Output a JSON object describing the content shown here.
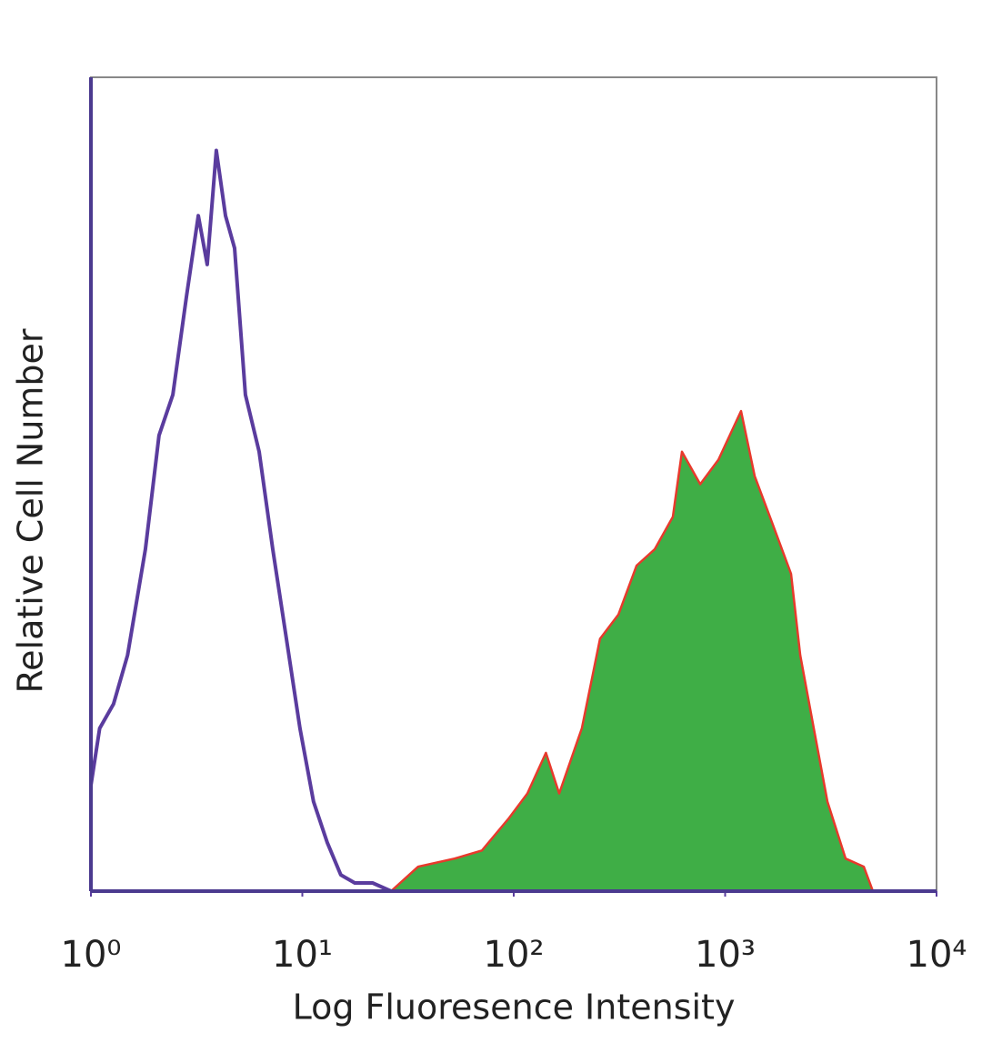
{
  "chart_data": {
    "type": "histogram-overlay",
    "x_label": "Log Fluoresence Intensity",
    "y_label": "Relative Cell Number",
    "xscale": "log",
    "xlim": [
      1,
      10000
    ],
    "xticks": [
      {
        "value": 1,
        "label": "10⁰"
      },
      {
        "value": 10,
        "label": "10¹"
      },
      {
        "value": 100,
        "label": "10²"
      },
      {
        "value": 1000,
        "label": "10³"
      },
      {
        "value": 10000,
        "label": "10⁴"
      }
    ],
    "ylim": [
      0,
      100
    ],
    "grid": false,
    "series": [
      {
        "color": "#5a3c9e",
        "filled": false,
        "x": [
          1,
          1.1,
          1.28,
          1.49,
          1.81,
          2.1,
          2.44,
          2.83,
          3.22,
          3.55,
          3.92,
          4.33,
          4.78,
          5.38,
          6.25,
          7.25,
          8.41,
          9.75,
          11.3,
          13.1,
          15.2,
          17.7,
          21.5,
          26.3
        ],
        "values": [
          13,
          20,
          23,
          29,
          42,
          56,
          61,
          73,
          83,
          77,
          91,
          83,
          79,
          61,
          54,
          42,
          31,
          20,
          11,
          6,
          2,
          1,
          1,
          0
        ]
      },
      {
        "color": "#3fae46",
        "edge_color": "#e8392c",
        "filled": true,
        "x": [
          26.3,
          35.3,
          52.5,
          70.7,
          95.1,
          116,
          142,
          164,
          210,
          256,
          313,
          381,
          464,
          566,
          625,
          762,
          929,
          1189,
          1380,
          1683,
          2051,
          2265,
          2627,
          3048,
          3715,
          4529,
          5000
        ],
        "values": [
          0,
          3,
          4,
          5,
          9,
          12,
          17,
          12,
          20,
          31,
          34,
          40,
          42,
          46,
          54,
          50,
          53,
          59,
          51,
          45,
          39,
          29,
          20,
          11,
          4,
          3,
          0
        ]
      }
    ]
  }
}
